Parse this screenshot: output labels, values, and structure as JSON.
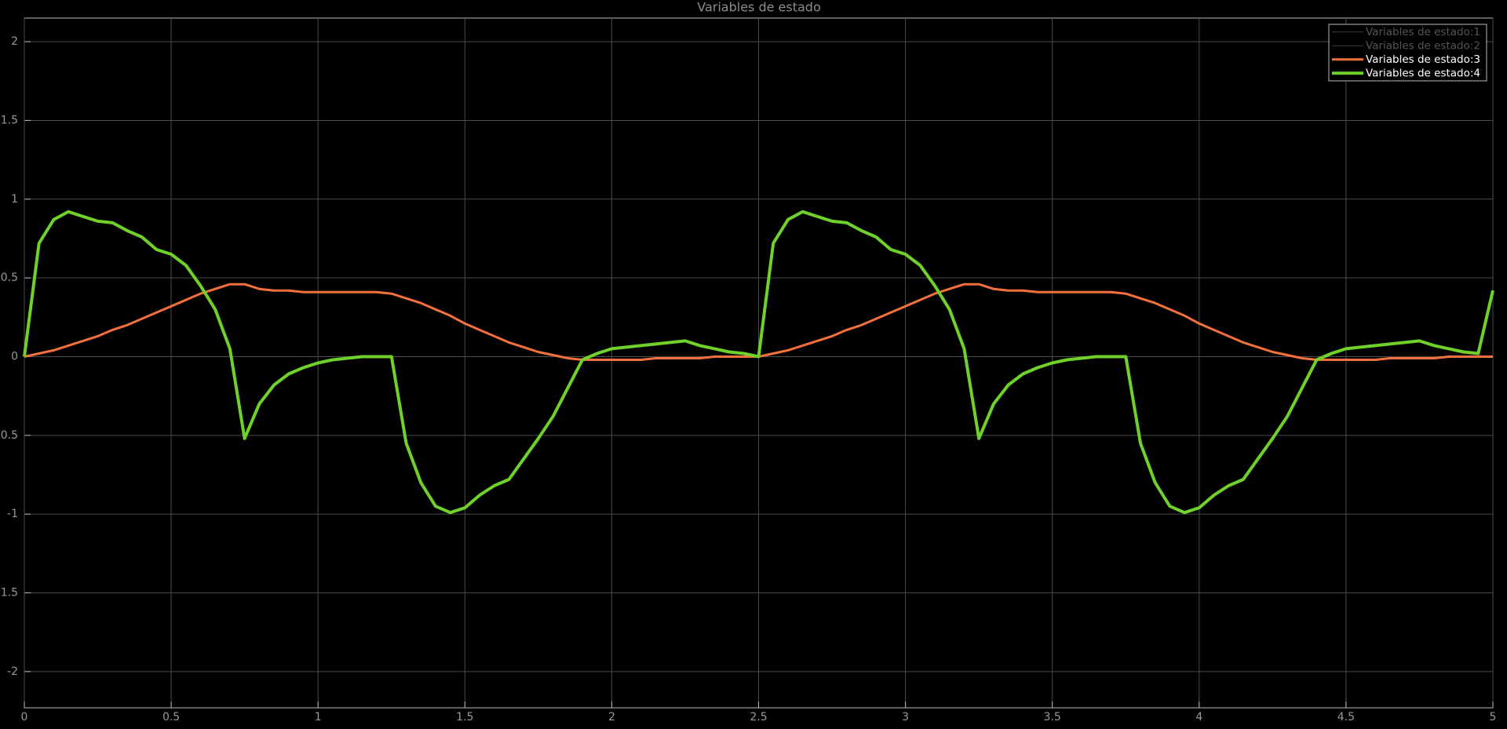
{
  "chart_data": {
    "type": "line",
    "title": "Variables de estado",
    "x": [
      0,
      0.05,
      0.1,
      0.15,
      0.2,
      0.25,
      0.3,
      0.35,
      0.4,
      0.45,
      0.5,
      0.55,
      0.6,
      0.65,
      0.7,
      0.75,
      0.8,
      0.85,
      0.9,
      0.95,
      1,
      1.05,
      1.1,
      1.15,
      1.2,
      1.25,
      1.3,
      1.35,
      1.4,
      1.45,
      1.5,
      1.55,
      1.6,
      1.65,
      1.7,
      1.75,
      1.8,
      1.85,
      1.9,
      1.95,
      2,
      2.05,
      2.1,
      2.15,
      2.2,
      2.25,
      2.3,
      2.35,
      2.4,
      2.45,
      2.5,
      2.55,
      2.6,
      2.65,
      2.7,
      2.75,
      2.8,
      2.85,
      2.9,
      2.95,
      3,
      3.05,
      3.1,
      3.15,
      3.2,
      3.25,
      3.3,
      3.35,
      3.4,
      3.45,
      3.5,
      3.55,
      3.6,
      3.65,
      3.7,
      3.75,
      3.8,
      3.85,
      3.9,
      3.95,
      4,
      4.05,
      4.1,
      4.15,
      4.2,
      4.25,
      4.3,
      4.35,
      4.4,
      4.45,
      4.5,
      4.55,
      4.6,
      4.65,
      4.7,
      4.75,
      4.8,
      4.85,
      4.9,
      4.95,
      5
    ],
    "series": [
      {
        "name": "Variables de estado:1",
        "color": "#3a3a3a",
        "values": [
          null,
          null,
          null,
          null,
          null,
          null,
          null,
          null,
          null,
          null,
          null,
          null,
          null,
          null,
          null,
          null,
          null,
          null,
          null,
          null,
          null,
          null,
          null,
          null,
          null,
          null,
          null,
          null,
          null,
          null,
          null,
          null,
          null,
          null,
          null,
          null,
          null,
          null,
          null,
          null,
          null,
          null,
          null,
          null,
          null,
          null,
          null,
          null,
          null,
          null,
          null,
          null,
          null,
          null,
          null,
          null,
          null,
          null,
          null,
          null,
          null,
          null,
          null,
          null,
          null,
          null,
          null,
          null,
          null,
          null,
          null,
          null,
          null,
          null,
          null,
          null,
          null,
          null,
          null,
          null,
          null,
          null,
          null,
          null,
          null,
          null,
          null,
          null,
          null,
          null,
          null,
          null,
          null,
          null,
          null,
          null,
          null,
          null,
          null,
          null,
          null
        ]
      },
      {
        "name": "Variables de estado:2",
        "color": "#3a3a3a",
        "values": [
          null,
          null,
          null,
          null,
          null,
          null,
          null,
          null,
          null,
          null,
          null,
          null,
          null,
          null,
          null,
          null,
          null,
          null,
          null,
          null,
          null,
          null,
          null,
          null,
          null,
          null,
          null,
          null,
          null,
          null,
          null,
          null,
          null,
          null,
          null,
          null,
          null,
          null,
          null,
          null,
          null,
          null,
          null,
          null,
          null,
          null,
          null,
          null,
          null,
          null,
          null,
          null,
          null,
          null,
          null,
          null,
          null,
          null,
          null,
          null,
          null,
          null,
          null,
          null,
          null,
          null,
          null,
          null,
          null,
          null,
          null,
          null,
          null,
          null,
          null,
          null,
          null,
          null,
          null,
          null,
          null,
          null,
          null,
          null,
          null,
          null,
          null,
          null,
          null,
          null,
          null,
          null,
          null,
          null,
          null,
          null,
          null,
          null,
          null,
          null,
          null
        ]
      },
      {
        "name": "Variables de estado:3",
        "color": "#f4703c",
        "values": [
          0,
          0.02,
          0.04,
          0.07,
          0.1,
          0.13,
          0.17,
          0.2,
          0.24,
          0.28,
          0.32,
          0.36,
          0.4,
          0.43,
          0.46,
          0.46,
          0.43,
          0.42,
          0.42,
          0.41,
          0.41,
          0.41,
          0.41,
          0.41,
          0.41,
          0.4,
          0.37,
          0.34,
          0.3,
          0.26,
          0.21,
          0.17,
          0.13,
          0.09,
          0.06,
          0.03,
          0.01,
          -0.01,
          -0.02,
          -0.02,
          -0.02,
          -0.02,
          -0.02,
          -0.01,
          -0.01,
          -0.01,
          -0.01,
          0,
          0,
          0,
          0,
          0.02,
          0.04,
          0.07,
          0.1,
          0.13,
          0.17,
          0.2,
          0.24,
          0.28,
          0.32,
          0.36,
          0.4,
          0.43,
          0.46,
          0.46,
          0.43,
          0.42,
          0.42,
          0.41,
          0.41,
          0.41,
          0.41,
          0.41,
          0.41,
          0.4,
          0.37,
          0.34,
          0.3,
          0.26,
          0.21,
          0.17,
          0.13,
          0.09,
          0.06,
          0.03,
          0.01,
          -0.01,
          -0.02,
          -0.02,
          -0.02,
          -0.02,
          -0.02,
          -0.01,
          -0.01,
          -0.01,
          -0.01,
          0,
          0,
          0,
          0
        ]
      },
      {
        "name": "Variables de estado:4",
        "color": "#6fd12a",
        "values": [
          0,
          0.72,
          0.87,
          0.92,
          0.89,
          0.86,
          0.85,
          0.8,
          0.76,
          0.68,
          0.65,
          0.58,
          0.45,
          0.3,
          0.05,
          -0.52,
          -0.3,
          -0.18,
          -0.11,
          -0.07,
          -0.04,
          -0.02,
          -0.01,
          0,
          0,
          0,
          -0.55,
          -0.8,
          -0.95,
          -0.99,
          -0.96,
          -0.88,
          -0.82,
          -0.78,
          -0.65,
          -0.52,
          -0.38,
          -0.2,
          -0.02,
          0.02,
          0.05,
          0.06,
          0.07,
          0.08,
          0.09,
          0.1,
          0.07,
          0.05,
          0.03,
          0.02,
          0,
          0.72,
          0.87,
          0.92,
          0.89,
          0.86,
          0.85,
          0.8,
          0.76,
          0.68,
          0.65,
          0.58,
          0.45,
          0.3,
          0.05,
          -0.52,
          -0.3,
          -0.18,
          -0.11,
          -0.07,
          -0.04,
          -0.02,
          -0.01,
          0,
          0,
          0,
          -0.55,
          -0.8,
          -0.95,
          -0.99,
          -0.96,
          -0.88,
          -0.82,
          -0.78,
          -0.65,
          -0.52,
          -0.38,
          -0.2,
          -0.02,
          0.02,
          0.05,
          0.06,
          0.07,
          0.08,
          0.09,
          0.1,
          0.07,
          0.05,
          0.03,
          0.02,
          0.42
        ]
      }
    ],
    "xlim": [
      0,
      5
    ],
    "xticks": [
      0,
      0.5,
      1,
      1.5,
      2,
      2.5,
      3,
      3.5,
      4,
      4.5,
      5
    ],
    "ylim": [
      -2.23,
      2.15
    ],
    "yticks": [
      -2,
      -1.5,
      -1,
      -0.5,
      0,
      0.5,
      1,
      1.5,
      2
    ],
    "grid": true,
    "legend": "top-right"
  }
}
